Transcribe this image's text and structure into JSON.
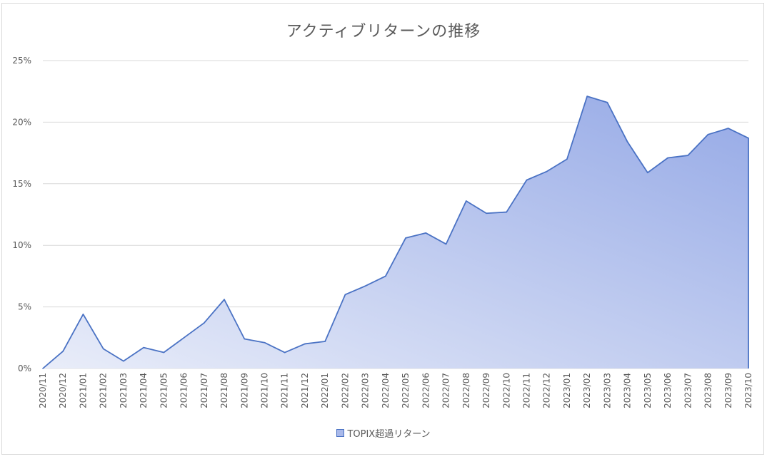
{
  "chart_data": {
    "type": "area",
    "title": "アクティブリターンの推移",
    "ylim": [
      0,
      25
    ],
    "yticks": [
      "0%",
      "5%",
      "10%",
      "15%",
      "20%",
      "25%"
    ],
    "ytick_values": [
      0,
      5,
      10,
      15,
      20,
      25
    ],
    "grid": true,
    "legend_position": "bottom",
    "categories": [
      "2020/11",
      "2020/12",
      "2021/01",
      "2021/02",
      "2021/03",
      "2021/04",
      "2021/05",
      "2021/06",
      "2021/07",
      "2021/08",
      "2021/09",
      "2021/10",
      "2021/11",
      "2021/12",
      "2022/01",
      "2022/02",
      "2022/03",
      "2022/04",
      "2022/05",
      "2022/06",
      "2022/07",
      "2022/08",
      "2022/09",
      "2022/10",
      "2022/11",
      "2022/12",
      "2023/01",
      "2023/02",
      "2023/03",
      "2023/04",
      "2023/05",
      "2023/06",
      "2023/07",
      "2023/08",
      "2023/09",
      "2023/10"
    ],
    "series": [
      {
        "name": "TOPIX超過リターン",
        "values": [
          0.0,
          1.4,
          4.4,
          1.6,
          0.6,
          1.7,
          1.3,
          2.5,
          3.7,
          5.6,
          2.4,
          2.1,
          1.3,
          2.0,
          2.2,
          6.0,
          6.7,
          7.5,
          10.6,
          11.0,
          10.1,
          13.6,
          12.6,
          12.7,
          15.3,
          16.0,
          17.0,
          22.1,
          21.6,
          18.4,
          15.9,
          17.1,
          17.3,
          19.0,
          19.5,
          18.7
        ],
        "line_color": "#4a72c4",
        "fill_start": "#e9edf9",
        "fill_end": "#95a9e6"
      }
    ]
  }
}
